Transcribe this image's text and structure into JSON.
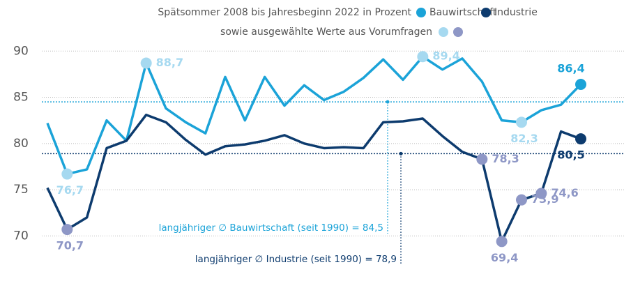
{
  "chart_data": {
    "type": "line",
    "title": "Spätsommer 2008 bis Jahresbeginn 2022 in Prozent",
    "subtitle": "sowie ausgewählte Werte aus Vorumfragen",
    "categories": [
      null,
      null,
      null,
      null,
      null,
      null,
      null,
      null,
      null,
      null,
      null,
      null,
      null,
      null,
      null,
      null,
      null,
      null,
      null,
      null,
      null,
      null,
      null,
      null,
      null,
      null,
      null,
      null
    ],
    "series": [
      {
        "name": "Bauwirtschaft",
        "color": "#1ba3d8",
        "highlight_color": "#a6d9f0",
        "values": [
          82.2,
          76.7,
          77.2,
          82.5,
          80.3,
          88.7,
          83.8,
          82.3,
          81.1,
          87.2,
          82.5,
          87.2,
          84.1,
          86.3,
          84.7,
          85.6,
          87.1,
          89.1,
          86.9,
          89.4,
          88.0,
          89.2,
          86.7,
          82.5,
          82.3,
          83.6,
          84.2,
          86.4
        ],
        "value_labels": [
          null,
          "76,7",
          null,
          null,
          null,
          "88,7",
          null,
          null,
          null,
          null,
          null,
          null,
          null,
          null,
          null,
          null,
          null,
          null,
          null,
          "89,4",
          null,
          null,
          null,
          null,
          "82,3",
          null,
          null,
          "86,4"
        ]
      },
      {
        "name": "Industrie",
        "color": "#0d3b6e",
        "highlight_color": "#8e97c6",
        "values": [
          75.2,
          70.7,
          72.0,
          79.5,
          80.3,
          83.1,
          82.3,
          80.4,
          78.8,
          79.7,
          79.9,
          80.3,
          80.9,
          80.0,
          79.5,
          79.6,
          79.5,
          82.3,
          82.4,
          82.7,
          80.8,
          79.1,
          78.3,
          69.4,
          73.9,
          74.6,
          81.3,
          80.5
        ],
        "value_labels": [
          null,
          "70,7",
          null,
          null,
          null,
          null,
          null,
          null,
          null,
          null,
          null,
          null,
          null,
          null,
          null,
          null,
          null,
          null,
          null,
          null,
          null,
          null,
          "78,3",
          "69,4",
          "73,9",
          "74,6",
          null,
          "80,5"
        ]
      }
    ],
    "reference_lines": [
      {
        "value": 84.5,
        "label": "langjähriger ∅ Bauwirtschaft (seit 1990) = 84,5",
        "color": "#1ba3d8"
      },
      {
        "value": 78.9,
        "label": "langjähriger ∅ Industrie (seit 1990) = 78,9",
        "color": "#0d3b6e"
      }
    ],
    "ylim": [
      65.5,
      95
    ],
    "yticks": [
      70,
      75,
      80,
      85,
      90
    ],
    "grid": true
  }
}
